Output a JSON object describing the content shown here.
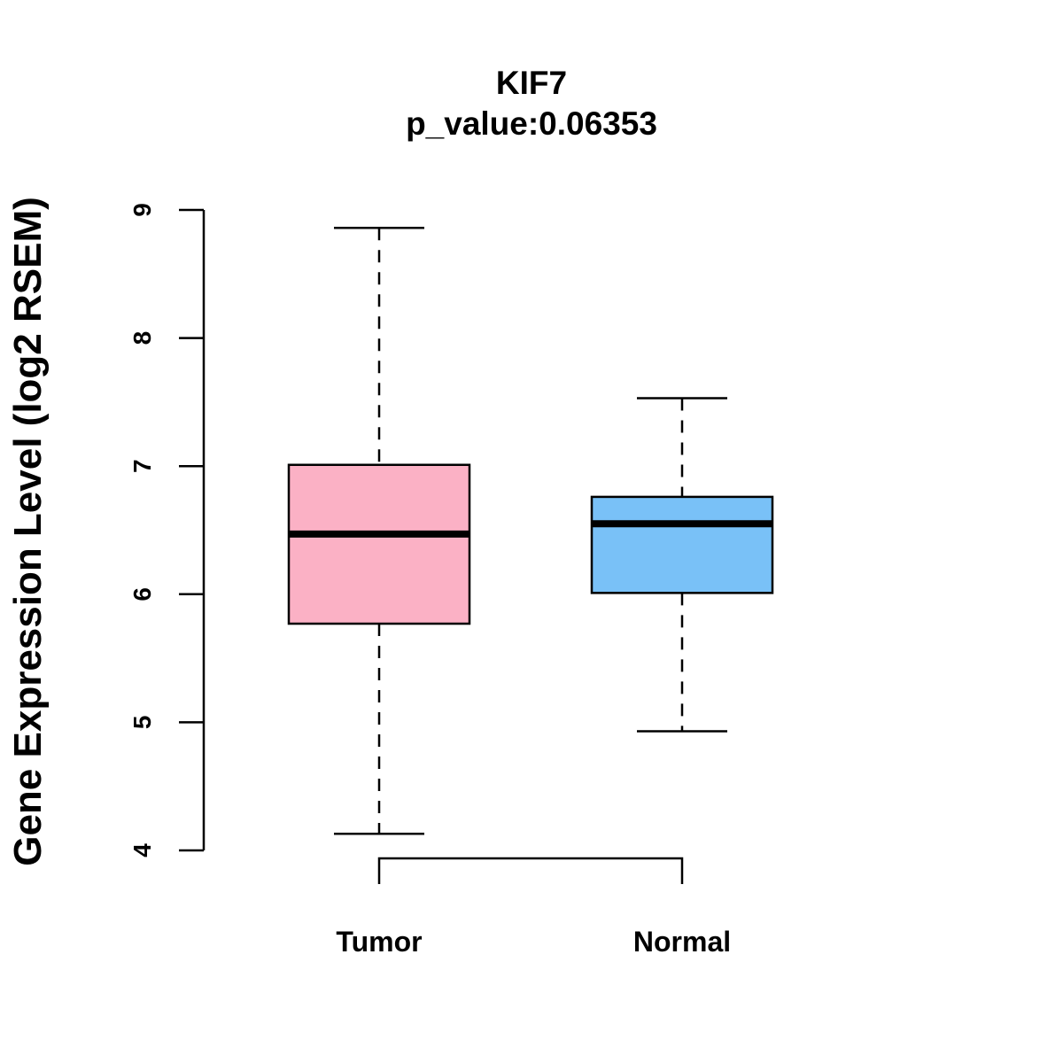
{
  "chart_data": {
    "type": "box",
    "title": "KIF7",
    "subtitle": "p_value:0.06353",
    "xlabel": "",
    "ylabel": "Gene Expression Level (log2 RSEM)",
    "ylim": [
      4,
      9
    ],
    "yticks": [
      "4",
      "5",
      "6",
      "7",
      "8",
      "9"
    ],
    "categories": [
      "Tumor",
      "Normal"
    ],
    "colors": [
      "#FBB1C5",
      "#79C1F7"
    ],
    "boxes": [
      {
        "name": "Tumor",
        "min": 4.13,
        "q1": 5.77,
        "median": 6.47,
        "q3": 7.01,
        "max": 8.86
      },
      {
        "name": "Normal",
        "min": 4.93,
        "q1": 6.01,
        "median": 6.55,
        "q3": 6.76,
        "max": 7.53
      }
    ],
    "bracket": {
      "from": "Tumor",
      "to": "Normal"
    }
  }
}
